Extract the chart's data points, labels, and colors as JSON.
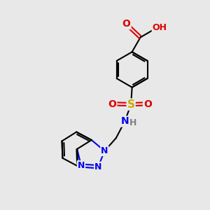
{
  "background_color": "#e8e8e8",
  "bond_color": "#000000",
  "bond_width": 1.5,
  "atom_colors": {
    "C": "#000000",
    "H": "#808080",
    "N": "#0000ee",
    "O": "#dd0000",
    "S": "#ccaa00"
  },
  "figsize": [
    3.0,
    3.0
  ],
  "dpi": 100
}
